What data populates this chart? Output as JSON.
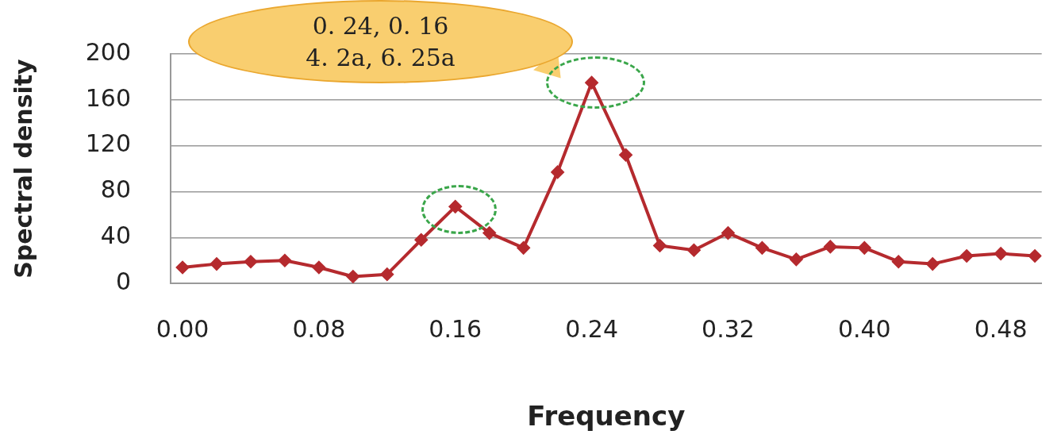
{
  "chart_data": {
    "type": "line",
    "xlabel": "Frequency",
    "ylabel": "Spectral density",
    "x": [
      0,
      0.02,
      0.04,
      0.06,
      0.08,
      0.1,
      0.12,
      0.14,
      0.16,
      0.18,
      0.2,
      0.22,
      0.24,
      0.26,
      0.28,
      0.3,
      0.32,
      0.34,
      0.36,
      0.38,
      0.4,
      0.42,
      0.44,
      0.46,
      0.48,
      0.5
    ],
    "series": [
      {
        "color": "#b52a2e",
        "values": [
          14,
          17,
          19,
          20,
          14,
          6,
          8,
          38,
          67,
          44,
          31,
          97,
          175,
          112,
          33,
          29,
          44,
          31,
          21,
          32,
          31,
          19,
          17,
          24,
          26,
          24
        ]
      }
    ],
    "xlim": [
      -0.007,
      0.504
    ],
    "xticks": [
      {
        "value": 0,
        "label": "0.00"
      },
      0.08,
      0.16,
      0.24,
      0.32,
      {
        "value": 0.4,
        "label": "0.40"
      },
      0.48
    ],
    "ylim": [
      0,
      200
    ],
    "yticks": [
      0,
      40,
      80,
      120,
      160,
      200
    ],
    "grid": "y",
    "marker": "diamond",
    "line_style": "solid",
    "legend": false,
    "annotations": [
      "0. 24, 0. 16",
      "4. 2a, 6. 25a"
    ]
  }
}
